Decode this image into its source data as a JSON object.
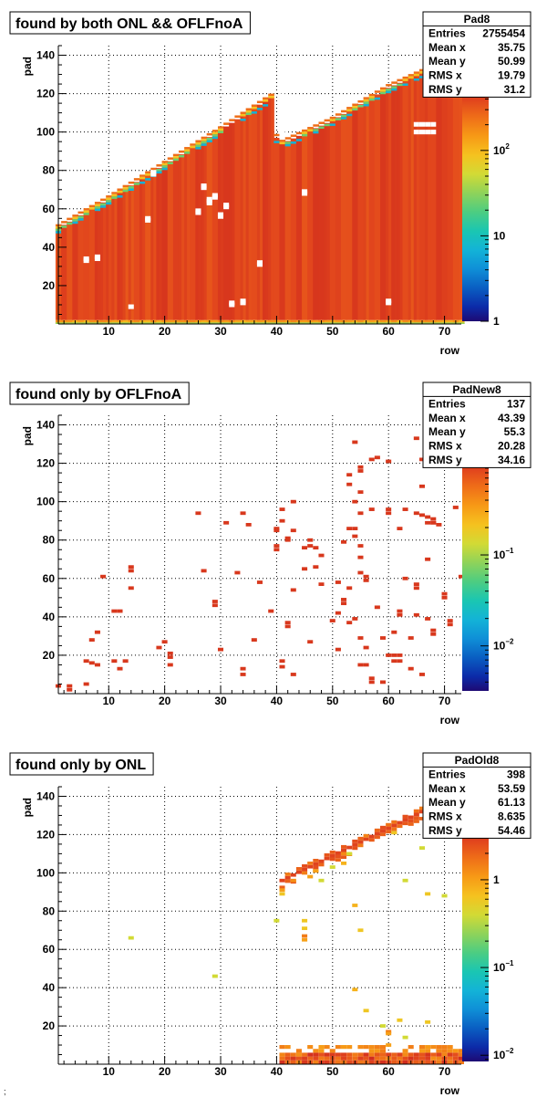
{
  "footer_mark": ";",
  "chart_data": [
    {
      "type": "heatmap",
      "title": "found by both ONL && OFLFnoA",
      "xlabel": "row",
      "ylabel": "pad",
      "xlim": [
        1,
        73
      ],
      "ylim": [
        0,
        145
      ],
      "x_ticks": [
        10,
        20,
        30,
        40,
        50,
        60,
        70
      ],
      "y_ticks": [
        20,
        40,
        60,
        80,
        100,
        120,
        140
      ],
      "color_scale": "log",
      "color_ticks": [
        {
          "value": 1,
          "base": "1",
          "exp": ""
        },
        {
          "value": 10,
          "base": "10",
          "exp": ""
        },
        {
          "value": 100,
          "base": "10",
          "exp": "2"
        }
      ],
      "zlim": [
        1,
        600
      ],
      "stats": {
        "name": "Pad8",
        "rows": [
          {
            "label": "Entries",
            "value": "2755454"
          },
          {
            "label": "Mean x",
            "value": "35.75"
          },
          {
            "label": "Mean y",
            "value": "50.99"
          },
          {
            "label": "RMS x",
            "value": "19.79"
          },
          {
            "label": "RMS y",
            "value": "31.2"
          }
        ]
      },
      "distribution": {
        "kind": "full",
        "pad_max": [
          [
            1,
            52
          ],
          [
            10,
            67
          ],
          [
            20,
            85
          ],
          [
            30,
            103
          ],
          [
            39,
            120
          ],
          [
            40,
            99
          ],
          [
            41,
            96
          ],
          [
            50,
            108
          ],
          [
            60,
            125
          ],
          [
            70,
            138
          ],
          [
            73,
            140
          ]
        ],
        "holes": [
          [
            6,
            34
          ],
          [
            6,
            33
          ],
          [
            8,
            35
          ],
          [
            8,
            34
          ],
          [
            14,
            9
          ],
          [
            17,
            54
          ],
          [
            17,
            55
          ],
          [
            18,
            78
          ],
          [
            18,
            79
          ],
          [
            26,
            58
          ],
          [
            26,
            59
          ],
          [
            27,
            71
          ],
          [
            27,
            72
          ],
          [
            28,
            63
          ],
          [
            28,
            64
          ],
          [
            28,
            65
          ],
          [
            29,
            66
          ],
          [
            29,
            67
          ],
          [
            30,
            56
          ],
          [
            30,
            57
          ],
          [
            31,
            62
          ],
          [
            31,
            61
          ],
          [
            32,
            10
          ],
          [
            32,
            11
          ],
          [
            34,
            12
          ],
          [
            34,
            11
          ],
          [
            37,
            31
          ],
          [
            37,
            32
          ],
          [
            45,
            68
          ],
          [
            45,
            69
          ],
          [
            60,
            11
          ],
          [
            60,
            12
          ],
          [
            65,
            100
          ],
          [
            65,
            104
          ],
          [
            66,
            100
          ],
          [
            66,
            104
          ],
          [
            67,
            100
          ],
          [
            67,
            104
          ],
          [
            68,
            100
          ],
          [
            68,
            104
          ]
        ]
      }
    },
    {
      "type": "heatmap",
      "title": "found only by OFLFnoA",
      "xlabel": "row",
      "ylabel": "pad",
      "xlim": [
        1,
        73
      ],
      "ylim": [
        0,
        145
      ],
      "x_ticks": [
        10,
        20,
        30,
        40,
        50,
        60,
        70
      ],
      "y_ticks": [
        20,
        40,
        60,
        80,
        100,
        120,
        140
      ],
      "color_scale": "log",
      "color_ticks": [
        {
          "value": 0.01,
          "base": "10",
          "exp": "−2"
        },
        {
          "value": 0.1,
          "base": "10",
          "exp": "−1"
        }
      ],
      "zlim": [
        0.0032,
        1.3
      ],
      "stats": {
        "name": "PadNew8",
        "rows": [
          {
            "label": "Entries",
            "value": "137"
          },
          {
            "label": "Mean x",
            "value": "43.39"
          },
          {
            "label": "Mean y",
            "value": "55.3"
          },
          {
            "label": "RMS x",
            "value": "20.28"
          },
          {
            "label": "RMS y",
            "value": "34.16"
          }
        ]
      },
      "distribution": {
        "kind": "points",
        "points": [
          [
            1,
            4,
            1
          ],
          [
            3,
            4,
            1
          ],
          [
            3,
            2,
            1
          ],
          [
            6,
            5,
            1
          ],
          [
            6,
            17,
            1
          ],
          [
            7,
            16,
            1
          ],
          [
            7,
            28,
            1
          ],
          [
            8,
            32,
            1
          ],
          [
            8,
            15,
            1
          ],
          [
            9,
            61,
            1
          ],
          [
            11,
            17,
            1
          ],
          [
            11,
            43,
            1
          ],
          [
            12,
            43,
            1
          ],
          [
            12,
            13,
            1
          ],
          [
            13,
            17,
            1
          ],
          [
            14,
            55,
            1
          ],
          [
            14,
            66,
            1
          ],
          [
            14,
            64,
            1
          ],
          [
            19,
            24,
            1
          ],
          [
            20,
            27,
            1
          ],
          [
            21,
            21,
            1
          ],
          [
            21,
            19,
            1
          ],
          [
            21,
            15,
            1
          ],
          [
            26,
            94,
            1
          ],
          [
            27,
            64,
            1
          ],
          [
            29,
            48,
            1
          ],
          [
            29,
            46,
            1
          ],
          [
            30,
            23,
            1
          ],
          [
            31,
            89,
            1
          ],
          [
            34,
            94,
            1
          ],
          [
            34,
            13,
            1
          ],
          [
            34,
            10,
            1
          ],
          [
            35,
            88,
            1
          ],
          [
            36,
            28,
            1
          ],
          [
            40,
            86,
            1
          ],
          [
            40,
            75,
            1
          ],
          [
            40,
            77,
            1
          ],
          [
            41,
            90,
            1
          ],
          [
            41,
            17,
            1
          ],
          [
            41,
            14,
            1
          ],
          [
            42,
            81,
            1
          ],
          [
            42,
            37,
            1
          ],
          [
            42,
            35,
            1
          ],
          [
            42,
            80,
            1
          ],
          [
            43,
            85,
            1
          ],
          [
            43,
            54,
            1
          ],
          [
            43,
            100,
            1
          ],
          [
            45,
            65,
            1
          ],
          [
            46,
            80,
            1
          ],
          [
            46,
            77,
            1
          ],
          [
            47,
            76,
            1
          ],
          [
            48,
            72,
            1
          ],
          [
            51,
            58,
            1
          ],
          [
            51,
            42,
            1
          ],
          [
            51,
            23,
            1
          ],
          [
            52,
            79,
            1
          ],
          [
            52,
            49,
            1
          ],
          [
            52,
            47,
            1
          ],
          [
            53,
            114,
            1
          ],
          [
            53,
            109,
            1
          ],
          [
            53,
            37,
            1
          ],
          [
            54,
            86,
            1
          ],
          [
            54,
            82,
            1
          ],
          [
            54,
            39,
            1
          ],
          [
            54,
            100,
            1
          ],
          [
            55,
            77,
            1
          ],
          [
            55,
            71,
            1
          ],
          [
            55,
            63,
            1
          ],
          [
            55,
            118,
            1
          ],
          [
            55,
            116,
            1
          ],
          [
            55,
            105,
            1
          ],
          [
            55,
            94,
            1
          ],
          [
            55,
            29,
            1
          ],
          [
            55,
            15,
            1
          ],
          [
            56,
            61,
            1
          ],
          [
            56,
            59,
            1
          ],
          [
            56,
            24,
            1
          ],
          [
            57,
            122,
            1
          ],
          [
            57,
            8,
            1
          ],
          [
            57,
            6,
            1
          ],
          [
            58,
            123,
            1
          ],
          [
            59,
            29,
            1
          ],
          [
            59,
            6,
            1
          ],
          [
            60,
            121,
            1
          ],
          [
            60,
            96,
            1
          ],
          [
            60,
            94,
            1
          ],
          [
            61,
            17,
            1
          ],
          [
            61,
            32,
            1
          ],
          [
            61,
            20,
            1
          ],
          [
            62,
            43,
            1
          ],
          [
            62,
            41,
            1
          ],
          [
            62,
            86,
            1
          ],
          [
            62,
            20,
            1
          ],
          [
            63,
            96,
            1
          ],
          [
            64,
            29,
            1
          ],
          [
            64,
            13,
            1
          ],
          [
            65,
            94,
            1
          ],
          [
            65,
            57,
            1
          ],
          [
            65,
            55,
            1
          ],
          [
            65,
            41,
            1
          ],
          [
            65,
            133,
            1
          ],
          [
            66,
            122,
            1
          ],
          [
            66,
            93,
            1
          ],
          [
            67,
            39,
            1
          ],
          [
            67,
            89,
            1
          ],
          [
            68,
            89,
            1
          ],
          [
            68,
            91,
            1
          ],
          [
            68,
            33,
            1
          ],
          [
            68,
            31,
            1
          ],
          [
            68,
            89,
            1
          ],
          [
            69,
            88,
            1
          ],
          [
            70,
            52,
            1
          ],
          [
            70,
            50,
            1
          ],
          [
            71,
            38,
            1
          ],
          [
            71,
            36,
            1
          ],
          [
            72,
            97,
            1
          ],
          [
            73,
            61,
            1
          ],
          [
            69,
            120,
            1
          ],
          [
            56,
            15,
            1
          ],
          [
            45,
            76,
            1
          ],
          [
            40,
            85,
            1
          ],
          [
            53,
            86,
            1
          ],
          [
            62,
            17,
            1
          ],
          [
            47,
            66,
            1
          ],
          [
            60,
            20,
            1
          ],
          [
            48,
            57,
            1
          ],
          [
            53,
            55,
            1
          ],
          [
            57,
            96,
            1
          ],
          [
            50,
            38,
            1
          ],
          [
            58,
            45,
            1
          ],
          [
            67,
            70,
            1
          ],
          [
            39,
            43,
            1
          ],
          [
            66,
            10,
            1
          ],
          [
            63,
            60,
            1
          ],
          [
            37,
            58,
            1
          ],
          [
            46,
            27,
            1
          ],
          [
            66,
            108,
            1
          ],
          [
            67,
            92,
            1
          ],
          [
            43,
            10,
            1
          ],
          [
            33,
            63,
            1
          ],
          [
            54,
            131,
            1
          ],
          [
            41,
            96,
            1
          ]
        ]
      }
    },
    {
      "type": "heatmap",
      "title": "found only by ONL",
      "xlabel": "row",
      "ylabel": "pad",
      "xlim": [
        1,
        73
      ],
      "ylim": [
        0,
        145
      ],
      "x_ticks": [
        10,
        20,
        30,
        40,
        50,
        60,
        70
      ],
      "y_ticks": [
        20,
        40,
        60,
        80,
        100,
        120,
        140
      ],
      "color_scale": "log",
      "color_ticks": [
        {
          "value": 0.01,
          "base": "10",
          "exp": "−2"
        },
        {
          "value": 0.1,
          "base": "10",
          "exp": "−1"
        },
        {
          "value": 1,
          "base": "1",
          "exp": ""
        }
      ],
      "zlim": [
        0.0085,
        4.2
      ],
      "stats": {
        "name": "PadOld8",
        "rows": [
          {
            "label": "Entries",
            "value": "398"
          },
          {
            "label": "Mean x",
            "value": "53.59"
          },
          {
            "label": "Mean y",
            "value": "61.13"
          },
          {
            "label": "RMS x",
            "value": "8.635"
          },
          {
            "label": "RMS y",
            "value": "54.46"
          }
        ]
      },
      "distribution": {
        "kind": "onl",
        "diagonal": [
          [
            41,
            96
          ],
          [
            73,
            142
          ]
        ],
        "bottom_band": {
          "x_from": 41,
          "x_to": 73,
          "pad_from": 1,
          "pad_to": 9
        },
        "points": [
          [
            14,
            66,
            0.4
          ],
          [
            29,
            46,
            0.4
          ],
          [
            40,
            75,
            0.4
          ],
          [
            41,
            91,
            1
          ],
          [
            41,
            89,
            0.6
          ],
          [
            45,
            75,
            0.6
          ],
          [
            45,
            71,
            0.6
          ],
          [
            45,
            67,
            1.5
          ],
          [
            45,
            65,
            1
          ],
          [
            46,
            98,
            1
          ],
          [
            48,
            96,
            0.4
          ],
          [
            52,
            105,
            0.8
          ],
          [
            53,
            110,
            0.4
          ],
          [
            54,
            83,
            0.8
          ],
          [
            54,
            39,
            0.8
          ],
          [
            55,
            70,
            0.6
          ],
          [
            56,
            28,
            0.6
          ],
          [
            59,
            20,
            0.4
          ],
          [
            60,
            17,
            1.5
          ],
          [
            60,
            16,
            1
          ],
          [
            61,
            121,
            0.6
          ],
          [
            62,
            23,
            0.6
          ],
          [
            63,
            96,
            0.4
          ],
          [
            63,
            14,
            0.4
          ],
          [
            66,
            113,
            0.4
          ],
          [
            67,
            89,
            0.6
          ],
          [
            67,
            22,
            0.6
          ],
          [
            70,
            88,
            0.4
          ],
          [
            60,
            10,
            1
          ],
          [
            47,
            101,
            1
          ],
          [
            43,
            96,
            1.2
          ],
          [
            50,
            103,
            0.4
          ]
        ]
      }
    }
  ]
}
